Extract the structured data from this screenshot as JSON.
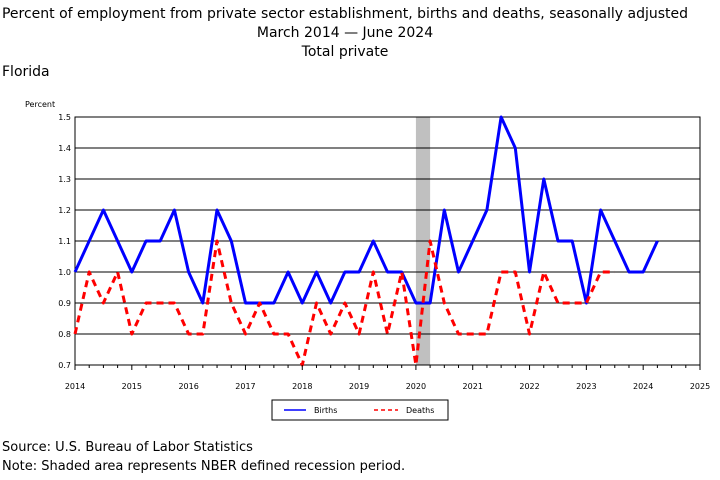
{
  "title_line1": "Percent of employment from private sector establishment, births and deaths, seasonally adjusted",
  "title_line2_start": "March 2014",
  "title_line2_end": "June 2024",
  "title_line3": "Total private",
  "state": "Florida",
  "footer": {
    "source": "Source: U.S. Bureau of Labor Statistics",
    "note": "Note: Shaded area represents NBER defined recession period."
  },
  "colors": {
    "births": "#0000ff",
    "deaths": "#ff0000",
    "recession": "#c0c0c0"
  },
  "chart_data": {
    "type": "line",
    "ylabel": "Percent",
    "xlim": [
      2014,
      2025
    ],
    "ylim": [
      0.7,
      1.5
    ],
    "xticks": [
      "2014",
      "2015",
      "2016",
      "2017",
      "2018",
      "2019",
      "2020",
      "2021",
      "2022",
      "2023",
      "2024",
      "2025"
    ],
    "yticks": [
      "0.7",
      "0.8",
      "0.9",
      "1.0",
      "1.1",
      "1.2",
      "1.3",
      "1.4",
      "1.5"
    ],
    "grid": true,
    "legend_position": "bottom-center",
    "recession": {
      "start": "2020-Q1",
      "end": "2020-Q2"
    },
    "x": [
      "2014-Q1",
      "2014-Q2",
      "2014-Q3",
      "2014-Q4",
      "2015-Q1",
      "2015-Q2",
      "2015-Q3",
      "2015-Q4",
      "2016-Q1",
      "2016-Q2",
      "2016-Q3",
      "2016-Q4",
      "2017-Q1",
      "2017-Q2",
      "2017-Q3",
      "2017-Q4",
      "2018-Q1",
      "2018-Q2",
      "2018-Q3",
      "2018-Q4",
      "2019-Q1",
      "2019-Q2",
      "2019-Q3",
      "2019-Q4",
      "2020-Q1",
      "2020-Q2",
      "2020-Q3",
      "2020-Q4",
      "2021-Q1",
      "2021-Q2",
      "2021-Q3",
      "2021-Q4",
      "2022-Q1",
      "2022-Q2",
      "2022-Q3",
      "2022-Q4",
      "2023-Q1",
      "2023-Q2",
      "2023-Q3",
      "2023-Q4",
      "2024-Q1",
      "2024-Q2"
    ],
    "series": [
      {
        "name": "Births",
        "style": "solid",
        "values": [
          1.0,
          1.1,
          1.2,
          1.1,
          1.0,
          1.1,
          1.1,
          1.2,
          1.0,
          0.9,
          1.2,
          1.1,
          0.9,
          0.9,
          0.9,
          1.0,
          0.9,
          1.0,
          0.9,
          1.0,
          1.0,
          1.1,
          1.0,
          1.0,
          0.9,
          0.9,
          1.2,
          1.0,
          1.1,
          1.2,
          1.5,
          1.4,
          1.0,
          1.3,
          1.1,
          1.1,
          0.9,
          1.2,
          1.1,
          1.0,
          1.0,
          1.1
        ]
      },
      {
        "name": "Deaths",
        "style": "dashed",
        "values": [
          0.8,
          1.0,
          0.9,
          1.0,
          0.8,
          0.9,
          0.9,
          0.9,
          0.8,
          0.8,
          1.1,
          0.9,
          0.8,
          0.9,
          0.8,
          0.8,
          0.7,
          0.9,
          0.8,
          0.9,
          0.8,
          1.0,
          0.8,
          1.0,
          0.7,
          1.1,
          0.9,
          0.8,
          0.8,
          0.8,
          1.0,
          1.0,
          0.8,
          1.0,
          0.9,
          0.9,
          0.9,
          1.0,
          1.0,
          null,
          null,
          null
        ]
      }
    ]
  }
}
